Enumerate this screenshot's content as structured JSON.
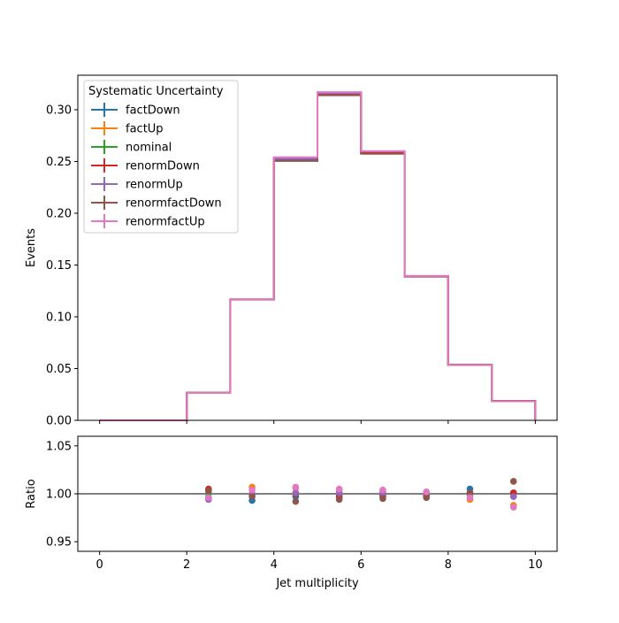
{
  "chart_data": [
    {
      "type": "step",
      "panel": "main",
      "xlabel": "",
      "ylabel": "Events",
      "xlim": [
        -0.5,
        10.5
      ],
      "ylim": [
        0.0,
        0.3333
      ],
      "bin_edges": [
        0,
        1,
        2,
        3,
        4,
        5,
        6,
        7,
        8,
        9,
        10
      ],
      "xticks": [
        "0",
        "2",
        "4",
        "6",
        "8",
        "10"
      ],
      "yticks": [
        "0.00",
        "0.05",
        "0.10",
        "0.15",
        "0.20",
        "0.25",
        "0.30"
      ],
      "grid": false,
      "legend": {
        "title": "Systematic Uncertainty",
        "placement": "top-left"
      },
      "series": [
        {
          "name": "factDown",
          "color": "#1f77b4",
          "values": [
            0.0,
            0.0,
            0.0266,
            0.1166,
            0.251,
            0.3145,
            0.258,
            0.1392,
            0.0537,
            0.0186
          ]
        },
        {
          "name": "factUp",
          "color": "#ff7f0e",
          "values": [
            0.0,
            0.0,
            0.0266,
            0.1168,
            0.2535,
            0.316,
            0.2595,
            0.1392,
            0.0534,
            0.0184
          ]
        },
        {
          "name": "nominal",
          "color": "#2ca02c",
          "values": [
            0.0,
            0.0,
            0.0266,
            0.1168,
            0.2525,
            0.3155,
            0.259,
            0.1393,
            0.0536,
            0.0186
          ]
        },
        {
          "name": "renormDown",
          "color": "#d62728",
          "values": [
            0.0,
            0.0,
            0.0266,
            0.1168,
            0.2525,
            0.315,
            0.2585,
            0.1392,
            0.0536,
            0.0186
          ]
        },
        {
          "name": "renormUp",
          "color": "#9467bd",
          "values": [
            0.0,
            0.0,
            0.0265,
            0.1166,
            0.2527,
            0.316,
            0.2598,
            0.1394,
            0.0536,
            0.0185
          ]
        },
        {
          "name": "renormfactDown",
          "color": "#8c564b",
          "values": [
            0.0,
            0.0,
            0.0266,
            0.1166,
            0.2505,
            0.314,
            0.2575,
            0.1388,
            0.0536,
            0.0188
          ]
        },
        {
          "name": "renormfactUp",
          "color": "#e377c2",
          "values": [
            0.0,
            0.0,
            0.0265,
            0.117,
            0.254,
            0.317,
            0.26,
            0.1394,
            0.0535,
            0.0184
          ]
        }
      ]
    },
    {
      "type": "scatter",
      "panel": "ratio",
      "xlabel": "Jet multiplicity",
      "ylabel": "Ratio",
      "xlim": [
        -0.5,
        10.5
      ],
      "ylim": [
        0.94,
        1.06
      ],
      "reference_line": 1.0,
      "x": [
        2.5,
        3.5,
        4.5,
        5.5,
        6.5,
        7.5,
        8.5,
        9.5
      ],
      "xticks": [
        "0",
        "2",
        "4",
        "6",
        "8",
        "10"
      ],
      "yticks": [
        "0.95",
        "1.00",
        "1.05"
      ],
      "series": [
        {
          "name": "factDown",
          "color": "#1f77b4",
          "values": [
            0.996,
            0.993,
            0.997,
            0.996,
            0.997,
            0.998,
            1.005,
            1.001
          ]
        },
        {
          "name": "factUp",
          "color": "#ff7f0e",
          "values": [
            1.003,
            1.007,
            1.006,
            1.004,
            1.002,
            1.0,
            0.994,
            0.988
          ]
        },
        {
          "name": "nominal",
          "color": "#2ca02c",
          "values": [
            1.0,
            1.0,
            1.0,
            1.0,
            1.0,
            1.0,
            1.0,
            1.0
          ]
        },
        {
          "name": "renormDown",
          "color": "#d62728",
          "values": [
            1.005,
            0.999,
            1.0,
            0.998,
            0.999,
            0.998,
            1.001,
            1.001
          ]
        },
        {
          "name": "renormUp",
          "color": "#9467bd",
          "values": [
            0.994,
            1.0,
            1.001,
            1.001,
            1.001,
            1.001,
            0.999,
            0.997
          ]
        },
        {
          "name": "renormfactDown",
          "color": "#8c564b",
          "values": [
            1.003,
            0.997,
            0.992,
            0.994,
            0.995,
            0.996,
            1.001,
            1.013
          ]
        },
        {
          "name": "renormfactUp",
          "color": "#e377c2",
          "values": [
            0.996,
            1.004,
            1.007,
            1.005,
            1.004,
            1.002,
            0.996,
            0.986
          ]
        }
      ]
    }
  ]
}
